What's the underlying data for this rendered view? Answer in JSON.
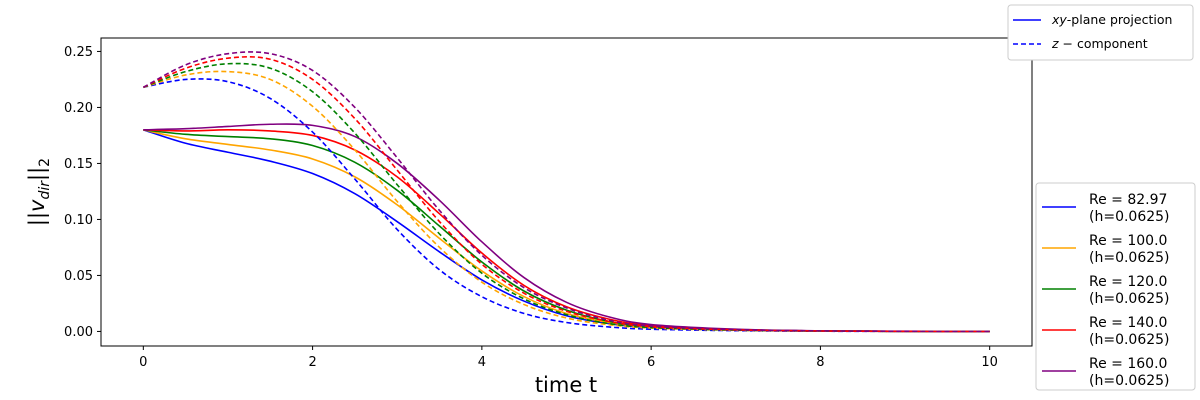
{
  "chart_data": {
    "type": "line",
    "xlabel": "time t",
    "ylabel": "||v_dir||_2",
    "xlim": [
      -0.5,
      10.5
    ],
    "ylim": [
      -0.013,
      0.262
    ],
    "xticks": [
      0,
      2,
      4,
      6,
      8,
      10
    ],
    "yticks": [
      0.0,
      0.05,
      0.1,
      0.15,
      0.2,
      0.25
    ],
    "xtick_labels": [
      "0",
      "2",
      "4",
      "6",
      "8",
      "10"
    ],
    "ytick_labels": [
      "0.00",
      "0.05",
      "0.10",
      "0.15",
      "0.20",
      "0.25"
    ],
    "grid": false,
    "style_legend": {
      "placement": "top-right-outside",
      "entries": [
        {
          "label_italic": "xy",
          "label_rest": "-plane projection",
          "style": "solid",
          "color": "#0000ff"
        },
        {
          "label_italic": "z",
          "label_rest": " − component",
          "style": "dashed",
          "color": "#0000ff"
        }
      ]
    },
    "series_legend": {
      "placement": "bottom-right-outside",
      "entries": [
        {
          "line1": "Re = 82.97",
          "line2": "(h=0.0625)",
          "color": "#0000ff"
        },
        {
          "line1": "Re = 100.0",
          "line2": "(h=0.0625)",
          "color": "#ffa500"
        },
        {
          "line1": "Re = 120.0",
          "line2": "(h=0.0625)",
          "color": "#008000"
        },
        {
          "line1": "Re = 140.0",
          "line2": "(h=0.0625)",
          "color": "#ff0000"
        },
        {
          "line1": "Re = 160.0",
          "line2": "(h=0.0625)",
          "color": "#800080"
        }
      ]
    },
    "x": [
      0,
      0.5,
      1,
      1.5,
      2,
      2.5,
      3,
      3.5,
      4,
      4.5,
      5,
      5.5,
      6,
      7,
      8,
      9,
      10
    ],
    "series": [
      {
        "color": "#0000ff",
        "style": "solid",
        "values": [
          0.18,
          0.168,
          0.16,
          0.152,
          0.141,
          0.123,
          0.098,
          0.071,
          0.046,
          0.027,
          0.014,
          0.007,
          0.0035,
          0.0012,
          0.0004,
          0.0001,
          0.0
        ]
      },
      {
        "color": "#ffa500",
        "style": "solid",
        "values": [
          0.18,
          0.172,
          0.167,
          0.162,
          0.154,
          0.138,
          0.113,
          0.083,
          0.054,
          0.031,
          0.016,
          0.008,
          0.004,
          0.0013,
          0.0004,
          0.0001,
          0.0
        ]
      },
      {
        "color": "#008000",
        "style": "solid",
        "values": [
          0.18,
          0.176,
          0.174,
          0.172,
          0.166,
          0.151,
          0.126,
          0.094,
          0.062,
          0.036,
          0.019,
          0.009,
          0.0045,
          0.0015,
          0.0005,
          0.0001,
          0.0
        ]
      },
      {
        "color": "#ff0000",
        "style": "solid",
        "values": [
          0.18,
          0.179,
          0.18,
          0.179,
          0.175,
          0.162,
          0.138,
          0.105,
          0.07,
          0.041,
          0.022,
          0.011,
          0.0052,
          0.0017,
          0.0005,
          0.0001,
          0.0
        ]
      },
      {
        "color": "#800080",
        "style": "solid",
        "values": [
          0.18,
          0.181,
          0.183,
          0.185,
          0.184,
          0.174,
          0.15,
          0.117,
          0.08,
          0.048,
          0.026,
          0.013,
          0.0062,
          0.002,
          0.0006,
          0.0002,
          0.0
        ]
      },
      {
        "color": "#0000ff",
        "style": "dashed",
        "values": [
          0.218,
          0.225,
          0.223,
          0.208,
          0.178,
          0.136,
          0.091,
          0.055,
          0.031,
          0.016,
          0.008,
          0.004,
          0.002,
          0.0007,
          0.0002,
          0.0001,
          0.0
        ]
      },
      {
        "color": "#ffa500",
        "style": "dashed",
        "values": [
          0.218,
          0.229,
          0.232,
          0.225,
          0.201,
          0.162,
          0.116,
          0.075,
          0.044,
          0.024,
          0.012,
          0.006,
          0.003,
          0.001,
          0.0003,
          0.0001,
          0.0
        ]
      },
      {
        "color": "#008000",
        "style": "dashed",
        "values": [
          0.218,
          0.232,
          0.239,
          0.235,
          0.214,
          0.177,
          0.131,
          0.087,
          0.052,
          0.029,
          0.015,
          0.007,
          0.0035,
          0.0012,
          0.0004,
          0.0001,
          0.0
        ]
      },
      {
        "color": "#ff0000",
        "style": "dashed",
        "values": [
          0.218,
          0.235,
          0.244,
          0.243,
          0.225,
          0.19,
          0.144,
          0.098,
          0.06,
          0.034,
          0.018,
          0.009,
          0.0042,
          0.0014,
          0.0004,
          0.0001,
          0.0
        ]
      },
      {
        "color": "#800080",
        "style": "dashed",
        "values": [
          0.218,
          0.238,
          0.248,
          0.248,
          0.233,
          0.2,
          0.155,
          0.108,
          0.068,
          0.039,
          0.021,
          0.01,
          0.0048,
          0.0016,
          0.0005,
          0.0001,
          0.0
        ]
      }
    ]
  }
}
